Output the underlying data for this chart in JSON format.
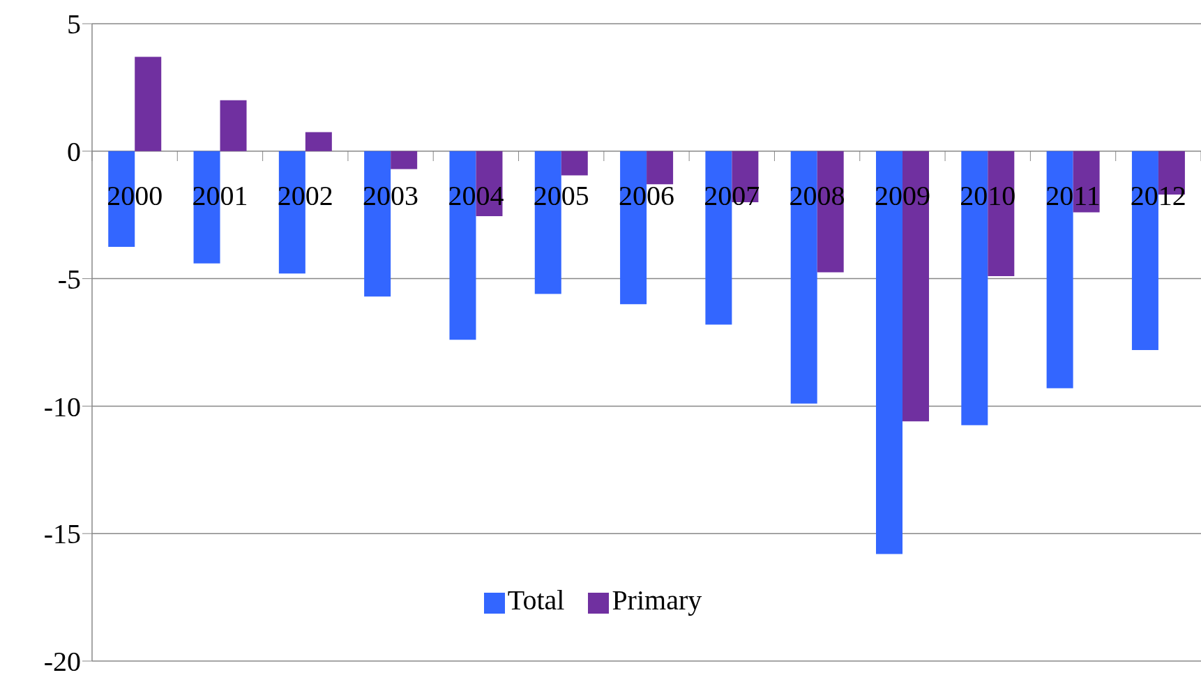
{
  "chart_data": {
    "type": "bar",
    "categories": [
      "2000",
      "2001",
      "2002",
      "2003",
      "2004",
      "2005",
      "2006",
      "2007",
      "2008",
      "2009",
      "2010",
      "2011",
      "2012"
    ],
    "series": [
      {
        "name": "Total",
        "color": "#3366ff",
        "values": [
          -3.75,
          -4.4,
          -4.8,
          -5.7,
          -7.4,
          -5.6,
          -6.0,
          -6.8,
          -9.9,
          -15.8,
          -10.75,
          -9.3,
          -7.8
        ]
      },
      {
        "name": "Primary",
        "color": "#7030a0",
        "values": [
          3.7,
          2.0,
          0.75,
          -0.7,
          -2.55,
          -0.95,
          -1.3,
          -2.0,
          -4.75,
          -10.6,
          -4.9,
          -2.4,
          -1.7
        ]
      }
    ],
    "ylim": [
      -20,
      5
    ],
    "yticks": [
      -20,
      -15,
      -10,
      -5,
      0,
      5
    ],
    "grid": "y",
    "legend": "bottom"
  }
}
